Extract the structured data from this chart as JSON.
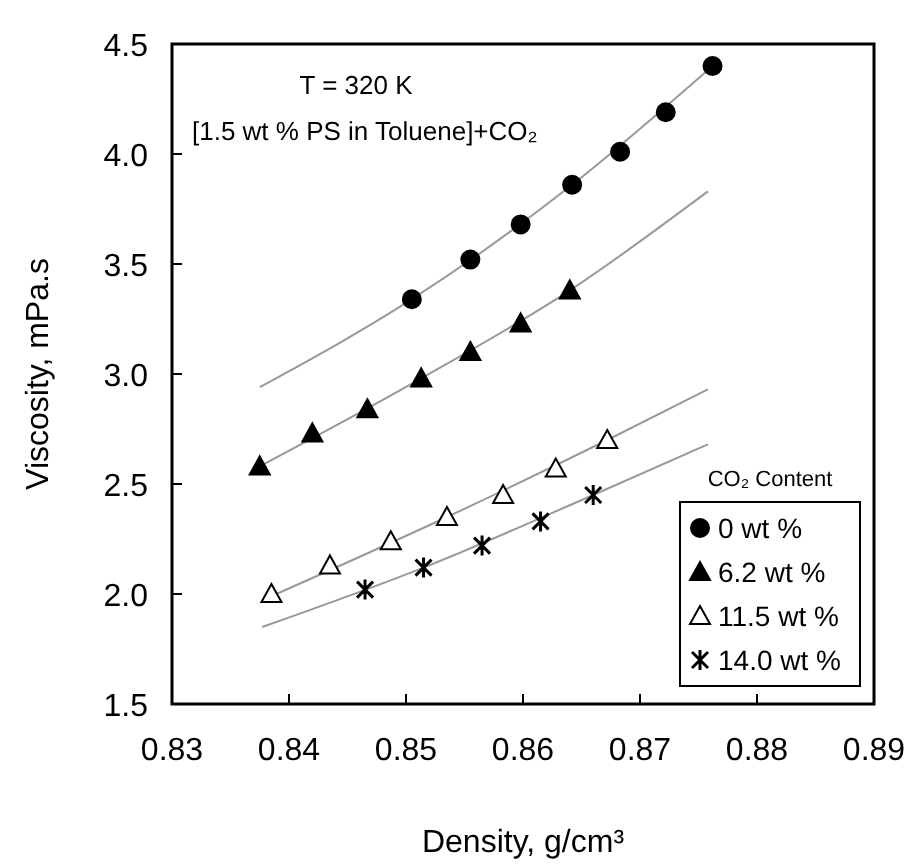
{
  "chart_data": {
    "type": "scatter",
    "xlabel": "Density, g/cm³",
    "ylabel": "Viscosity, mPa.s",
    "legend_title": "CO₂ Content",
    "legend": "bottom right",
    "grid": false,
    "xlim": [
      0.83,
      0.89
    ],
    "xticks": [
      0.83,
      0.84,
      0.85,
      0.86,
      0.87,
      0.88,
      0.89
    ],
    "ylim": [
      1.5,
      4.5
    ],
    "yticks": [
      1.5,
      {
        "value": 2,
        "label": "2.0"
      },
      2.5,
      {
        "value": 3,
        "label": "3.0"
      },
      3.5,
      {
        "value": 4,
        "label": "4.0"
      },
      4.5
    ],
    "annotations": [
      "T = 320 K",
      "[1.5 wt % PS in Toluene]+CO₂"
    ],
    "series": [
      {
        "name": "0 wt %",
        "color": "#000000",
        "marker": "circle",
        "x": [
          0.8505,
          0.8555,
          0.8598,
          0.8642,
          0.8683,
          0.8722,
          0.8762
        ],
        "values": [
          3.34,
          3.52,
          3.68,
          3.86,
          4.01,
          4.19,
          4.4
        ]
      },
      {
        "name": "6.2 wt %",
        "color": "#000000",
        "marker": "triangle",
        "x": [
          0.8375,
          0.842,
          0.8467,
          0.8513,
          0.8555,
          0.8598,
          0.864
        ],
        "values": [
          2.58,
          2.73,
          2.84,
          2.98,
          3.1,
          3.23,
          3.38
        ]
      },
      {
        "name": "11.5 wt %",
        "color": "#000000",
        "marker": "triangle",
        "x": [
          0.8385,
          0.8435,
          0.8487,
          0.8535,
          0.8583,
          0.8628,
          0.8672
        ],
        "values": [
          2.0,
          2.13,
          2.24,
          2.35,
          2.45,
          2.57,
          2.7
        ]
      },
      {
        "name": "14.0 wt %",
        "color": "#000000",
        "marker": "cross",
        "x": [
          0.8465,
          0.8515,
          0.8565,
          0.8615,
          0.866
        ],
        "values": [
          2.02,
          2.12,
          2.22,
          2.33,
          2.45
        ]
      },
      {
        "type": "line",
        "color": "#999999",
        "x": [
          0.8375,
          0.8505,
          0.8642,
          0.8762
        ],
        "values": [
          2.94,
          3.34,
          3.86,
          4.4
        ]
      },
      {
        "type": "line",
        "color": "#999999",
        "x": [
          0.8375,
          0.8513,
          0.864,
          0.8758
        ],
        "values": [
          2.58,
          2.98,
          3.38,
          3.83
        ]
      },
      {
        "type": "line",
        "color": "#999999",
        "x": [
          0.8385,
          0.8535,
          0.8672,
          0.8758
        ],
        "values": [
          1.99,
          2.35,
          2.7,
          2.93
        ]
      },
      {
        "type": "line",
        "color": "#999999",
        "x": [
          0.8377,
          0.8515,
          0.866,
          0.8758
        ],
        "values": [
          1.85,
          2.12,
          2.45,
          2.68
        ]
      }
    ]
  }
}
